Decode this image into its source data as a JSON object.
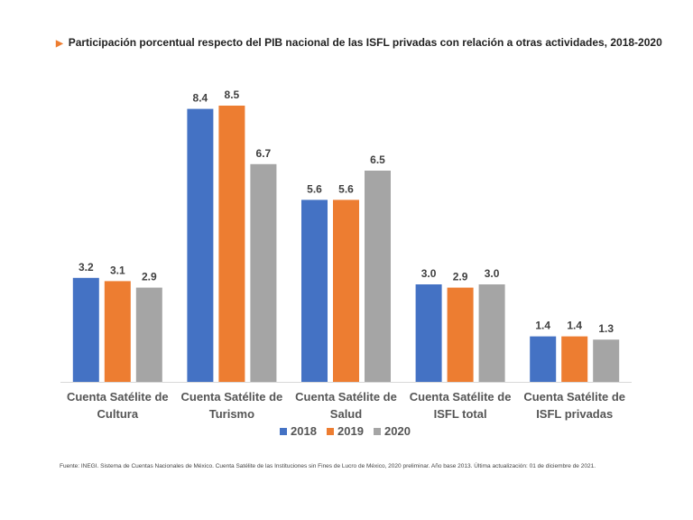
{
  "title": "Participación porcentual respecto del PIB nacional de las ISFL privadas con relación a otras actividades, 2018-2020",
  "source": "Fuente: INEGI. Sistema de Cuentas Nacionales de México. Cuenta Satélite de las Instituciones sin Fines de Lucro de México, 2020 preliminar. Año base 2013.  Última actualización: 01 de diciembre de 2021.",
  "chart_data": {
    "type": "bar",
    "title": "Participación porcentual respecto del PIB nacional de las ISFL privadas con relación a otras actividades, 2018-2020",
    "categories": [
      [
        "Cuenta Satélite de",
        "Cultura"
      ],
      [
        "Cuenta Satélite de",
        "Turismo"
      ],
      [
        "Cuenta Satélite de",
        "Salud"
      ],
      [
        "Cuenta Satélite de",
        "ISFL total"
      ],
      [
        "Cuenta Satélite de",
        "ISFL privadas"
      ]
    ],
    "series": [
      {
        "name": "2018",
        "color": "#4472C4",
        "values": [
          3.2,
          8.4,
          5.6,
          3.0,
          1.4
        ]
      },
      {
        "name": "2019",
        "color": "#ED7D31",
        "values": [
          3.1,
          8.5,
          5.6,
          2.9,
          1.4
        ]
      },
      {
        "name": "2020",
        "color": "#A5A5A5",
        "values": [
          2.9,
          6.7,
          6.5,
          3.0,
          1.3
        ]
      }
    ],
    "ylim": [
      0,
      8.5
    ],
    "grid": false,
    "legend_position": "bottom",
    "xlabel": "",
    "ylabel": ""
  }
}
